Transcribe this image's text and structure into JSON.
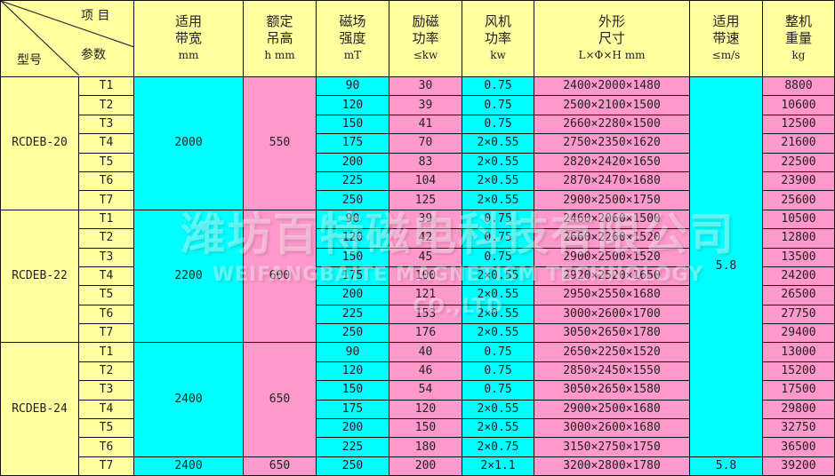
{
  "header": {
    "item_label": "项 目",
    "param_label": "参数",
    "model_label": "型号",
    "columns": [
      {
        "line1": "适用",
        "line2": "带宽",
        "unit": "mm"
      },
      {
        "line1": "额定",
        "line2": "吊高",
        "unit": "h mm"
      },
      {
        "line1": "磁场",
        "line2": "强度",
        "unit": "mT"
      },
      {
        "line1": "励磁",
        "line2": "功率",
        "unit": "≤kw"
      },
      {
        "line1": "风机",
        "line2": "功率",
        "unit": "kw"
      },
      {
        "line1": "外形",
        "line2": "尺寸",
        "unit": "L×Φ×H mm"
      },
      {
        "line1": "适用",
        "line2": "带速",
        "unit": "≤m/s"
      },
      {
        "line1": "整机",
        "line2": "重量",
        "unit": "kg"
      }
    ]
  },
  "colors": {
    "header": "#ffffa0",
    "cyan": "#00ffff",
    "pink": "#ff99cc"
  },
  "speed_merged": "5.8",
  "groups": [
    {
      "model": "RCDEB-20",
      "band_width": "2000",
      "lift_height": "550",
      "rows": [
        {
          "type": "T1",
          "field": "90",
          "excite": "30",
          "fan": "0.75",
          "dims": "2400×2000×1480",
          "weight": "8800"
        },
        {
          "type": "T2",
          "field": "120",
          "excite": "39",
          "fan": "0.75",
          "dims": "2500×2100×1500",
          "weight": "10600"
        },
        {
          "type": "T3",
          "field": "150",
          "excite": "41",
          "fan": "0.75",
          "dims": "2660×2280×1500",
          "weight": "12500"
        },
        {
          "type": "T4",
          "field": "175",
          "excite": "70",
          "fan": "2×0.55",
          "dims": "2750×2350×1620",
          "weight": "21600"
        },
        {
          "type": "T5",
          "field": "200",
          "excite": "83",
          "fan": "2×0.55",
          "dims": "2820×2420×1650",
          "weight": "22500"
        },
        {
          "type": "T6",
          "field": "225",
          "excite": "104",
          "fan": "2×0.55",
          "dims": "2870×2470×1680",
          "weight": "23900"
        },
        {
          "type": "T7",
          "field": "250",
          "excite": "125",
          "fan": "2×0.55",
          "dims": "2900×2500×1750",
          "weight": "25600"
        }
      ]
    },
    {
      "model": "RCDEB-22",
      "band_width": "2200",
      "lift_height": "600",
      "rows": [
        {
          "type": "T1",
          "field": "90",
          "excite": "39",
          "fan": "0.75",
          "dims": "2460×2060×1500",
          "weight": "10500"
        },
        {
          "type": "T2",
          "field": "120",
          "excite": "42",
          "fan": "0.75",
          "dims": "2660×2260×1520",
          "weight": "12800"
        },
        {
          "type": "T3",
          "field": "150",
          "excite": "45",
          "fan": "0.75",
          "dims": "2900×2500×1520",
          "weight": "13500"
        },
        {
          "type": "T4",
          "field": "175",
          "excite": "100",
          "fan": "2×0.55",
          "dims": "2920×2520×1650",
          "weight": "24200"
        },
        {
          "type": "T5",
          "field": "200",
          "excite": "121",
          "fan": "2×0.55",
          "dims": "2950×2550×1680",
          "weight": "26500"
        },
        {
          "type": "T6",
          "field": "225",
          "excite": "153",
          "fan": "2×0.55",
          "dims": "3000×2600×1700",
          "weight": "27750"
        },
        {
          "type": "T7",
          "field": "250",
          "excite": "176",
          "fan": "2×0.55",
          "dims": "3050×2650×1780",
          "weight": "29400"
        }
      ]
    },
    {
      "model": "RCDEB-24",
      "band_width": "2400",
      "lift_height": "650",
      "rows": [
        {
          "type": "T1",
          "field": "90",
          "excite": "40",
          "fan": "0.75",
          "dims": "2650×2250×1520",
          "weight": "13000"
        },
        {
          "type": "T2",
          "field": "120",
          "excite": "46",
          "fan": "0.75",
          "dims": "2850×2450×1550",
          "weight": "15200"
        },
        {
          "type": "T3",
          "field": "150",
          "excite": "54",
          "fan": "0.75",
          "dims": "3050×2650×1580",
          "weight": "17500"
        },
        {
          "type": "T4",
          "field": "175",
          "excite": "120",
          "fan": "2×0.55",
          "dims": "2900×2500×1680",
          "weight": "29800"
        },
        {
          "type": "T5",
          "field": "200",
          "excite": "150",
          "fan": "2×0.55",
          "dims": "3000×2600×1680",
          "weight": "32750"
        },
        {
          "type": "T6",
          "field": "225",
          "excite": "180",
          "fan": "2×0.75",
          "dims": "3150×2750×1750",
          "weight": "36500"
        },
        {
          "type": "T7",
          "field": "250",
          "excite": "200",
          "fan": "2×1.1",
          "dims": "3200×2800×1780",
          "weight": "39200",
          "band_width": "2400",
          "lift_height": "650",
          "speed": "5.8"
        }
      ]
    }
  ],
  "watermark": {
    "cn": "潍坊百特磁电科技有限公司",
    "en": "WEIFANGBAITE MAGNETISM TECHNOLOGY CO.,LTD"
  }
}
